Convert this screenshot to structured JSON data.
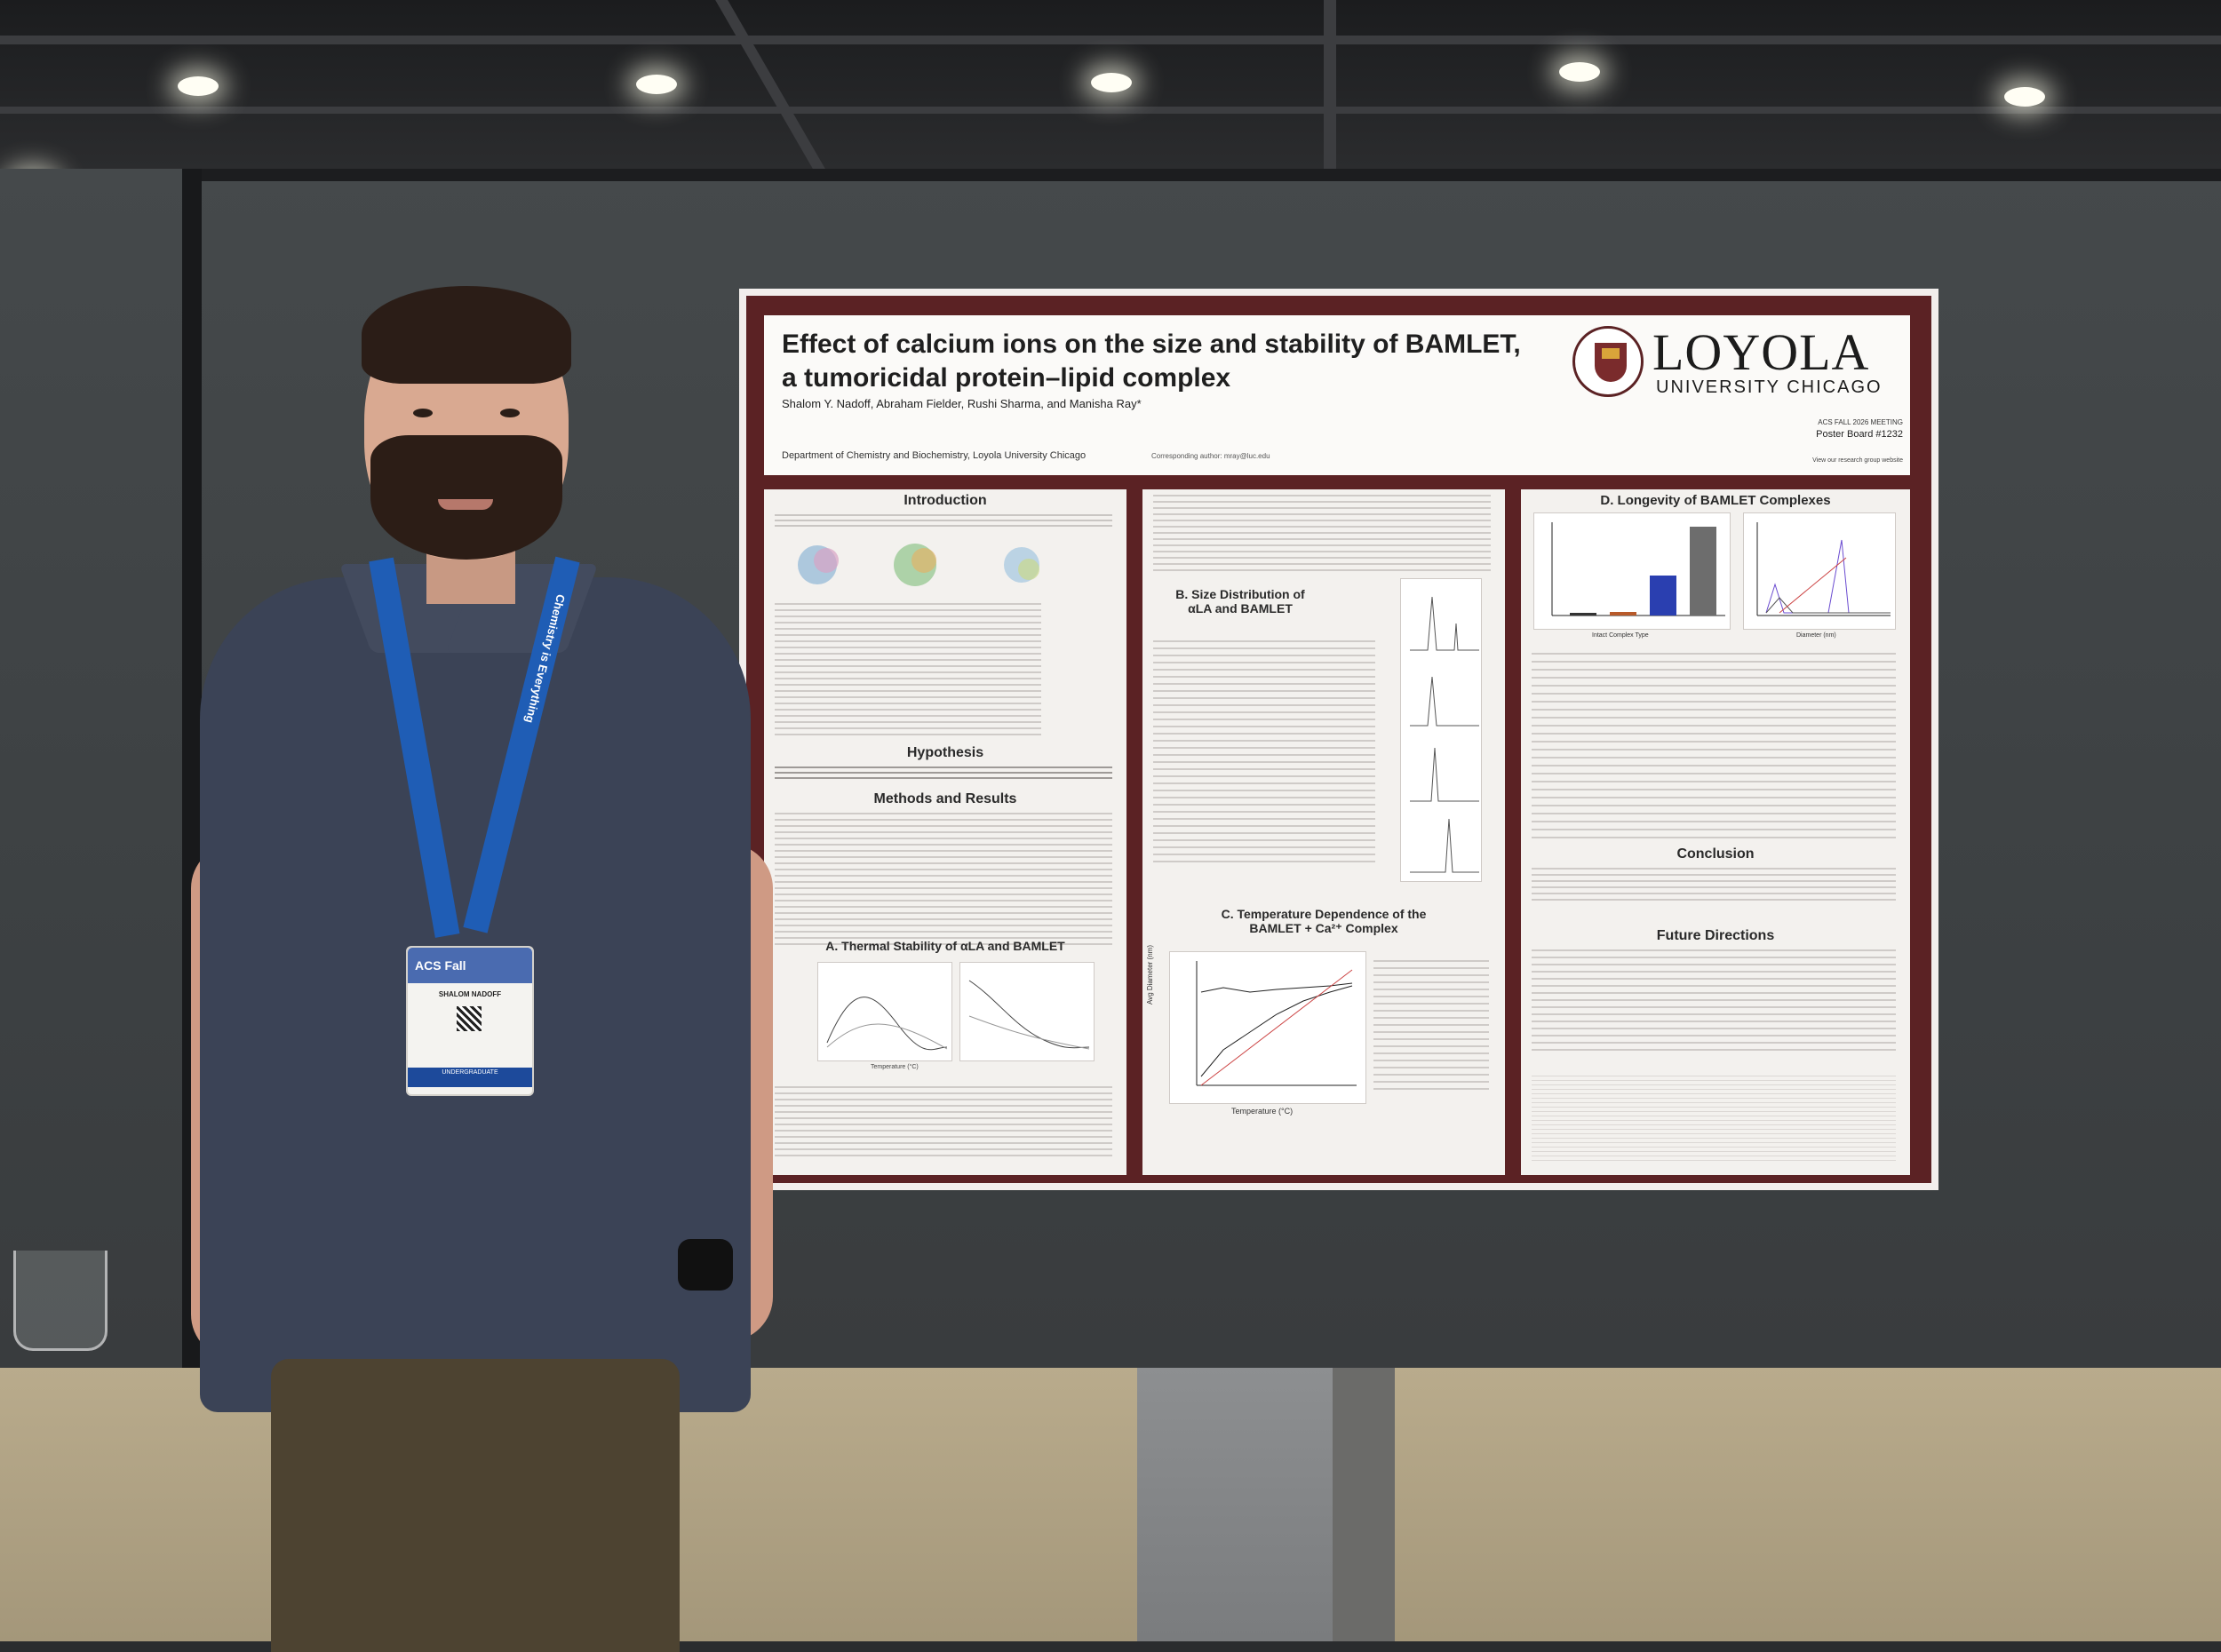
{
  "poster": {
    "title_line1": "Effect of calcium ions on the size and stability of BAMLET,",
    "title_line2": "a tumoricidal protein–lipid complex",
    "authors": "Shalom Y. Nadoff, Abraham Fielder, Rushi Sharma, and Manisha Ray*",
    "affiliation": "Department of Chemistry and Biochemistry, Loyola University Chicago",
    "university_name": "LOYOLA",
    "university_sub": "UNIVERSITY CHICAGO",
    "meeting": "ACS FALL 2026 MEETING",
    "board": "Poster Board #1232",
    "website_hint": "View our research group website",
    "corresponding": "Corresponding author: mray@luc.edu",
    "sections": {
      "introduction": "Introduction",
      "hypothesis": "Hypothesis",
      "methods": "Methods and Results",
      "thermal": "A. Thermal Stability of αLA and BAMLET",
      "size_line1": "B. Size Distribution of",
      "size_line2": "αLA and BAMLET",
      "temp_line1": "C. Temperature Dependence of the",
      "temp_line2": "BAMLET + Ca²⁺ Complex",
      "longevity": "D. Longevity of BAMLET Complexes",
      "conclusion": "Conclusion",
      "future": "Future Directions"
    },
    "figure_labels": {
      "temp_axis": "Temperature (°C)",
      "avg_diameter": "Avg Diameter (nm)",
      "intact_type": "Intact Complex Type",
      "diameter_nm": "Diameter (nm)"
    }
  },
  "badge": {
    "event": "ACS Fall",
    "name": "SHALOM NADOFF",
    "role": "UNDERGRADUATE"
  },
  "lanyard": {
    "text": "Chemistry is Everything"
  }
}
